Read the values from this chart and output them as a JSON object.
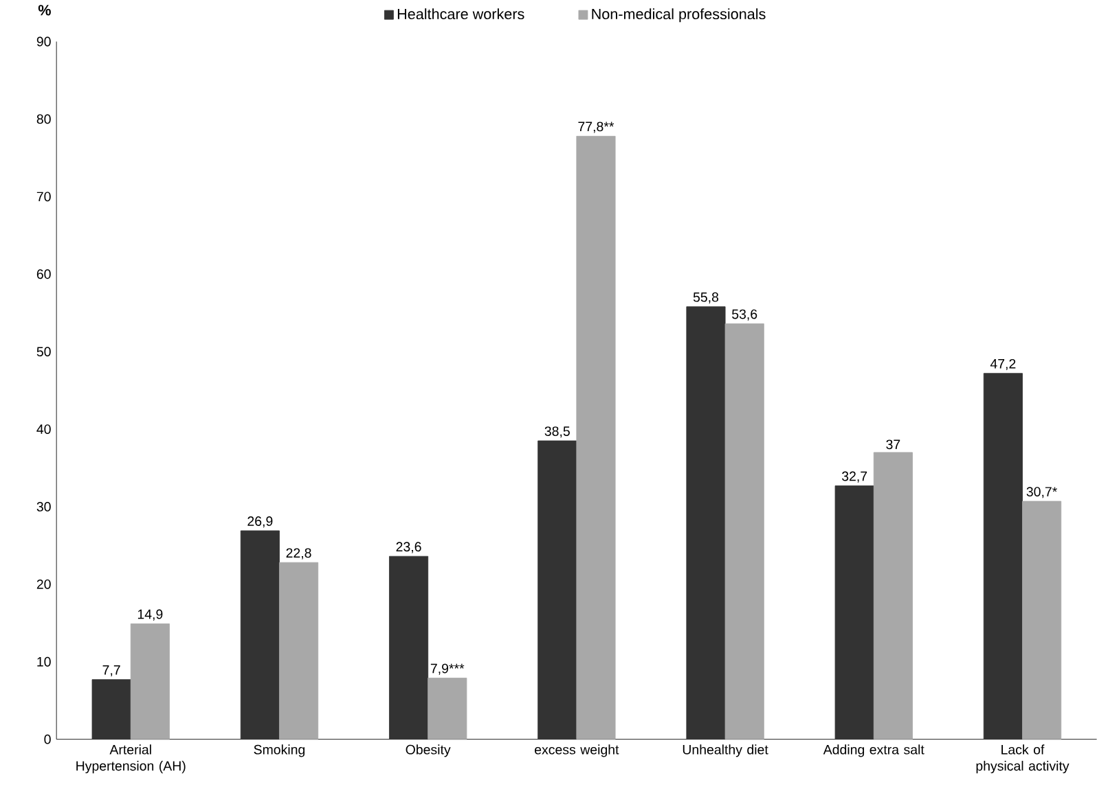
{
  "chart_data": {
    "type": "bar",
    "ylabel": "%",
    "categories": [
      "Arterial Hypertension (AH)",
      "Smoking",
      "Obesity",
      "excess weight",
      "Unhealthy diet",
      "Adding extra salt",
      "Lack of physical activity"
    ],
    "series": [
      {
        "name": "Healthcare workers",
        "color": "#333333",
        "values": [
          7.7,
          26.9,
          23.6,
          38.5,
          55.8,
          32.7,
          47.2
        ],
        "value_labels": [
          "7,7",
          "26,9",
          "23,6",
          "38,5",
          "55,8",
          "32,7",
          "47,2"
        ]
      },
      {
        "name": "Non-medical professionals",
        "color": "#a8a8a8",
        "values": [
          14.9,
          22.8,
          7.9,
          77.8,
          53.6,
          37,
          30.7
        ],
        "value_labels": [
          "14,9",
          "22,8",
          "7,9***",
          "77,8**",
          "53,6",
          "37",
          "30,7*"
        ]
      }
    ],
    "ylim": [
      0,
      90
    ],
    "yticks": [
      0,
      10,
      20,
      30,
      40,
      50,
      60,
      70,
      80,
      90
    ],
    "legend": "top",
    "grid": false
  }
}
